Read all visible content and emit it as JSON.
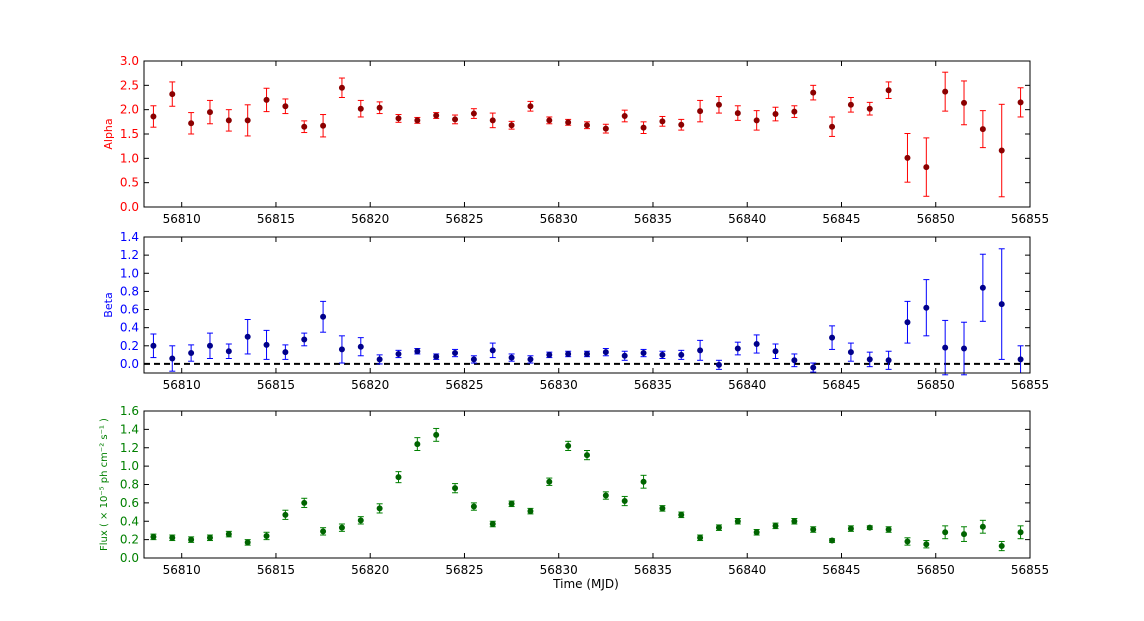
{
  "chart_data": [
    {
      "type": "scatter",
      "ylabel": "Alpha",
      "xlabel": "",
      "xlim": [
        56808,
        56855
      ],
      "ylim": [
        0.0,
        3.0
      ],
      "yticks": [
        "0.0",
        "0.5",
        "1.0",
        "1.5",
        "2.0",
        "2.5",
        "3.0"
      ],
      "xticks": [
        "56810",
        "56815",
        "56820",
        "56825",
        "56830",
        "56835",
        "56840",
        "56845",
        "56850",
        "56855"
      ],
      "color": "#ff0000",
      "marker_color": "#8b0000",
      "error_bars": true,
      "reference_line": null,
      "series": [
        {
          "x": [
            56808.5,
            56809.5,
            56810.5,
            56811.5,
            56812.5,
            56813.5,
            56814.5,
            56815.5,
            56816.5,
            56817.5,
            56818.5,
            56819.5,
            56820.5,
            56821.5,
            56822.5,
            56823.5,
            56824.5,
            56825.5,
            56826.5,
            56827.5,
            56828.5,
            56829.5,
            56830.5,
            56831.5,
            56832.5,
            56833.5,
            56834.5,
            56835.5,
            56836.5,
            56837.5,
            56838.5,
            56839.5,
            56840.5,
            56841.5,
            56842.5,
            56843.5,
            56844.5,
            56845.5,
            56846.5,
            56847.5,
            56848.5,
            56849.5,
            56850.5,
            56851.5,
            56852.5,
            56853.5,
            56854.5
          ],
          "y": [
            1.86,
            2.32,
            1.72,
            1.95,
            1.78,
            1.78,
            2.2,
            2.07,
            1.65,
            1.67,
            2.45,
            2.02,
            2.04,
            1.82,
            1.78,
            1.88,
            1.8,
            1.92,
            1.78,
            1.68,
            2.07,
            1.78,
            1.74,
            1.68,
            1.61,
            1.87,
            1.63,
            1.76,
            1.69,
            1.97,
            2.1,
            1.93,
            1.78,
            1.91,
            1.96,
            2.35,
            1.65,
            2.1,
            2.02,
            2.4,
            1.01,
            0.82,
            2.37,
            2.14,
            1.6,
            1.16,
            2.15
          ],
          "err": [
            0.22,
            0.25,
            0.22,
            0.24,
            0.22,
            0.32,
            0.24,
            0.15,
            0.12,
            0.23,
            0.2,
            0.17,
            0.12,
            0.08,
            0.06,
            0.06,
            0.09,
            0.1,
            0.15,
            0.08,
            0.1,
            0.07,
            0.06,
            0.07,
            0.09,
            0.12,
            0.12,
            0.1,
            0.11,
            0.22,
            0.17,
            0.15,
            0.2,
            0.14,
            0.12,
            0.15,
            0.2,
            0.15,
            0.13,
            0.17,
            0.5,
            0.6,
            0.4,
            0.45,
            0.38,
            0.95,
            0.3
          ]
        }
      ]
    },
    {
      "type": "scatter",
      "ylabel": "Beta",
      "xlabel": "",
      "xlim": [
        56808,
        56855
      ],
      "ylim": [
        -0.1,
        1.4
      ],
      "yticks": [
        "0.0",
        "0.2",
        "0.4",
        "0.6",
        "0.8",
        "1.0",
        "1.2",
        "1.4"
      ],
      "xticks": [
        "56810",
        "56815",
        "56820",
        "56825",
        "56830",
        "56835",
        "56840",
        "56845",
        "56850",
        "56855"
      ],
      "color": "#0000ff",
      "marker_color": "#00008b",
      "error_bars": true,
      "reference_line": 0.0,
      "series": [
        {
          "x": [
            56808.5,
            56809.5,
            56810.5,
            56811.5,
            56812.5,
            56813.5,
            56814.5,
            56815.5,
            56816.5,
            56817.5,
            56818.5,
            56819.5,
            56820.5,
            56821.5,
            56822.5,
            56823.5,
            56824.5,
            56825.5,
            56826.5,
            56827.5,
            56828.5,
            56829.5,
            56830.5,
            56831.5,
            56832.5,
            56833.5,
            56834.5,
            56835.5,
            56836.5,
            56837.5,
            56838.5,
            56839.5,
            56840.5,
            56841.5,
            56842.5,
            56843.5,
            56844.5,
            56845.5,
            56846.5,
            56847.5,
            56848.5,
            56849.5,
            56850.5,
            56851.5,
            56852.5,
            56853.5,
            56854.5
          ],
          "y": [
            0.2,
            0.06,
            0.12,
            0.2,
            0.14,
            0.3,
            0.21,
            0.13,
            0.27,
            0.52,
            0.16,
            0.19,
            0.05,
            0.11,
            0.14,
            0.08,
            0.12,
            0.05,
            0.15,
            0.07,
            0.05,
            0.1,
            0.11,
            0.11,
            0.13,
            0.09,
            0.12,
            0.1,
            0.1,
            0.15,
            -0.01,
            0.17,
            0.22,
            0.14,
            0.04,
            -0.04,
            0.29,
            0.13,
            0.05,
            0.04,
            0.46,
            0.62,
            0.18,
            0.17,
            0.84,
            0.66,
            0.05
          ]
        }
      ],
      "err_values": [
        0.13,
        0.14,
        0.09,
        0.14,
        0.08,
        0.19,
        0.16,
        0.08,
        0.07,
        0.17,
        0.15,
        0.1,
        0.05,
        0.04,
        0.03,
        0.03,
        0.04,
        0.04,
        0.08,
        0.04,
        0.04,
        0.03,
        0.03,
        0.03,
        0.04,
        0.05,
        0.04,
        0.04,
        0.05,
        0.11,
        0.05,
        0.07,
        0.1,
        0.08,
        0.07,
        0.05,
        0.13,
        0.1,
        0.08,
        0.1,
        0.23,
        0.31,
        0.3,
        0.29,
        0.37,
        0.61,
        0.15
      ]
    },
    {
      "type": "scatter",
      "ylabel": "Flux ( × 10⁻⁵ ph cm⁻² s⁻¹ )",
      "xlabel": "Time (MJD)",
      "xlim": [
        56808,
        56855
      ],
      "ylim": [
        0.0,
        1.6
      ],
      "yticks": [
        "0.0",
        "0.2",
        "0.4",
        "0.6",
        "0.8",
        "1.0",
        "1.2",
        "1.4",
        "1.6"
      ],
      "xticks": [
        "56810",
        "56815",
        "56820",
        "56825",
        "56830",
        "56835",
        "56840",
        "56845",
        "56850",
        "56855"
      ],
      "color": "#008000",
      "marker_color": "#006400",
      "error_bars": true,
      "reference_line": null,
      "series": [
        {
          "x": [
            56808.5,
            56809.5,
            56810.5,
            56811.5,
            56812.5,
            56813.5,
            56814.5,
            56815.5,
            56816.5,
            56817.5,
            56818.5,
            56819.5,
            56820.5,
            56821.5,
            56822.5,
            56823.5,
            56824.5,
            56825.5,
            56826.5,
            56827.5,
            56828.5,
            56829.5,
            56830.5,
            56831.5,
            56832.5,
            56833.5,
            56834.5,
            56835.5,
            56836.5,
            56837.5,
            56838.5,
            56839.5,
            56840.5,
            56841.5,
            56842.5,
            56843.5,
            56844.5,
            56845.5,
            56846.5,
            56847.5,
            56848.5,
            56849.5,
            56850.5,
            56851.5,
            56852.5,
            56853.5,
            56854.5
          ],
          "y": [
            0.23,
            0.22,
            0.2,
            0.22,
            0.26,
            0.17,
            0.24,
            0.47,
            0.6,
            0.29,
            0.33,
            0.41,
            0.54,
            0.88,
            1.24,
            1.34,
            0.76,
            0.56,
            0.37,
            0.59,
            0.51,
            0.83,
            1.22,
            1.12,
            0.68,
            0.62,
            0.83,
            0.54,
            0.47,
            0.22,
            0.33,
            0.4,
            0.28,
            0.35,
            0.4,
            0.31,
            0.19,
            0.32,
            0.33,
            0.31,
            0.18,
            0.15,
            0.28,
            0.26,
            0.34,
            0.13,
            0.28
          ]
        }
      ],
      "err_values": [
        0.03,
        0.03,
        0.03,
        0.03,
        0.03,
        0.03,
        0.04,
        0.05,
        0.05,
        0.04,
        0.04,
        0.04,
        0.05,
        0.06,
        0.07,
        0.07,
        0.05,
        0.04,
        0.03,
        0.03,
        0.03,
        0.04,
        0.05,
        0.05,
        0.04,
        0.05,
        0.07,
        0.03,
        0.03,
        0.03,
        0.03,
        0.03,
        0.03,
        0.03,
        0.03,
        0.03,
        0.02,
        0.03,
        0.02,
        0.03,
        0.04,
        0.04,
        0.07,
        0.08,
        0.07,
        0.05,
        0.07
      ]
    }
  ]
}
